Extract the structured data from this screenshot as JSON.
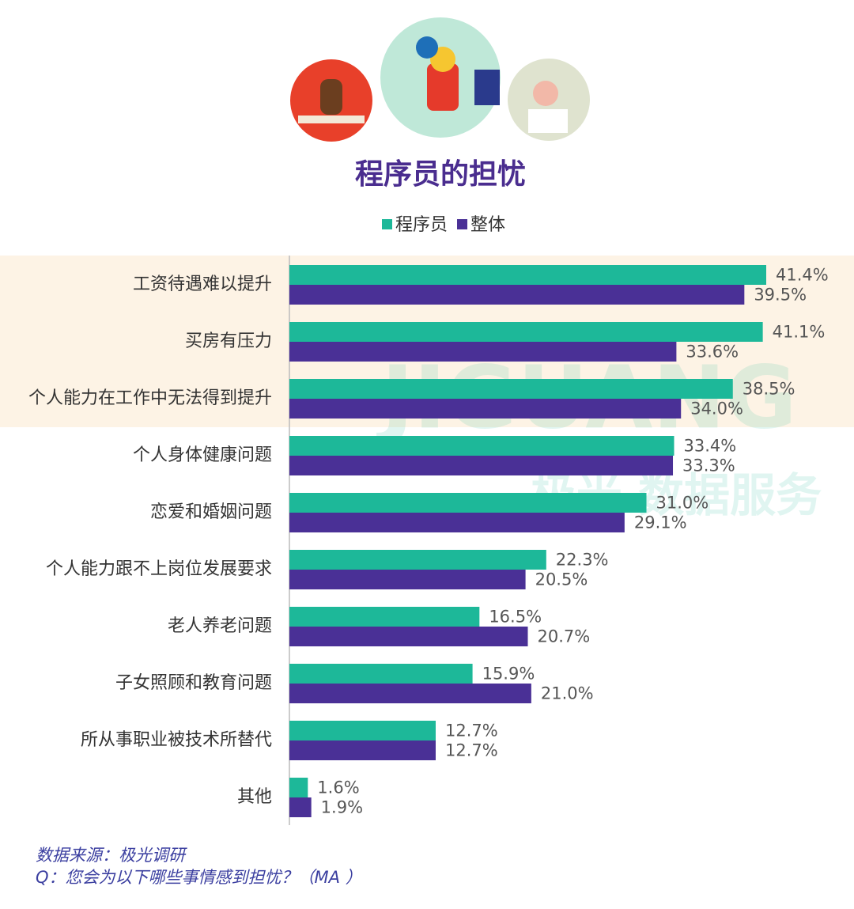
{
  "chart_data": {
    "type": "hbar",
    "title": "程序员的担忧",
    "categories": [
      "工资待遇难以提升",
      "买房有压力",
      "个人能力在工作中无法得到提升",
      "个人身体健康问题",
      "恋爱和婚姻问题",
      "个人能力跟不上岗位发展要求",
      "老人养老问题",
      "子女照顾和教育问题",
      "所从事职业被技术所替代",
      "其他"
    ],
    "series": [
      {
        "name": "程序员",
        "color": "#1db899",
        "values": [
          41.4,
          41.1,
          38.5,
          33.4,
          31.0,
          22.3,
          16.5,
          15.9,
          12.7,
          1.6
        ],
        "value_labels": [
          "41.4%",
          "41.1%",
          "38.5%",
          "33.4%",
          "31.0%",
          "22.3%",
          "16.5%",
          "15.9%",
          "12.7%",
          "1.6%"
        ]
      },
      {
        "name": "整体",
        "color": "#4a3096",
        "values": [
          39.5,
          33.6,
          34.0,
          33.3,
          29.1,
          20.5,
          20.7,
          21.0,
          12.7,
          1.9
        ],
        "value_labels": [
          "39.5%",
          "33.6%",
          "34.0%",
          "33.3%",
          "29.1%",
          "20.5%",
          "20.7%",
          "21.0%",
          "12.7%",
          "1.9%"
        ]
      }
    ],
    "legend": "top",
    "watermark": [
      "JIGUANG",
      "极光 数据服务"
    ],
    "source": "数据来源：极光调研",
    "question": "Q：您会为以下哪些事情感到担忧？（MA ）"
  }
}
